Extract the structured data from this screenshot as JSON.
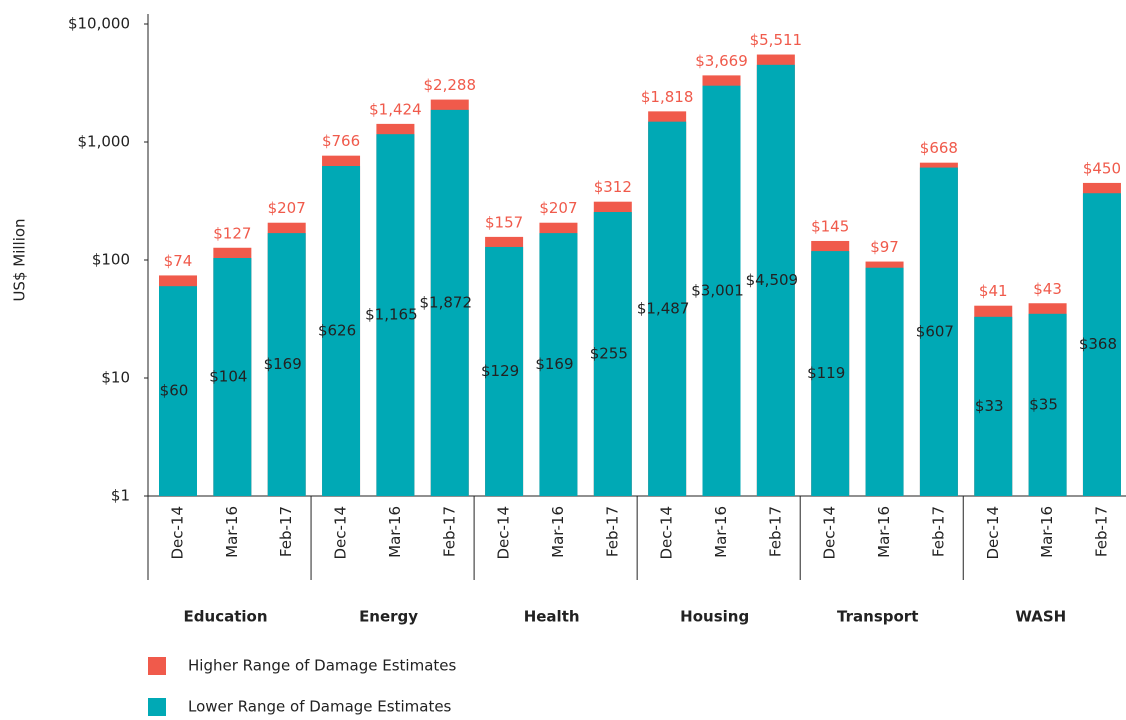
{
  "chart_data": {
    "type": "bar",
    "log_scale": true,
    "ylabel": "US$ Million",
    "ylim": [
      1,
      10000
    ],
    "yticks": [
      {
        "value": 1,
        "label": "$1"
      },
      {
        "value": 10,
        "label": "$10"
      },
      {
        "value": 100,
        "label": "$100"
      },
      {
        "value": 1000,
        "label": "$1,000"
      },
      {
        "value": 10000,
        "label": "$10,000"
      }
    ],
    "groups": [
      "Education",
      "Energy",
      "Health",
      "Housing",
      "Transport",
      "WASH"
    ],
    "categories": [
      "Dec-14",
      "Mar-16",
      "Feb-17",
      "Dec-14",
      "Mar-16",
      "Feb-17",
      "Dec-14",
      "Mar-16",
      "Feb-17",
      "Dec-14",
      "Mar-16",
      "Feb-17",
      "Dec-14",
      "Mar-16",
      "Feb-17",
      "Dec-14",
      "Mar-16",
      "Feb-17"
    ],
    "series": [
      {
        "name": "Higher Range of Damage Estimates",
        "color": "#f05a4b",
        "values": [
          74,
          127,
          207,
          766,
          1424,
          2288,
          157,
          207,
          312,
          1818,
          3669,
          5511,
          145,
          97,
          668,
          41,
          43,
          450
        ],
        "value_labels": [
          "$74",
          "$127",
          "$207",
          "$766",
          "$1,424",
          "$2,288",
          "$157",
          "$207",
          "$312",
          "$1,818",
          "$3,669",
          "$5,511",
          "$145",
          "$97",
          "$668",
          "$41",
          "$43",
          "$450"
        ]
      },
      {
        "name": "Lower Range of Damage Estimates",
        "color": "#00a9b5",
        "values": [
          60,
          104,
          169,
          626,
          1165,
          1872,
          129,
          169,
          255,
          1487,
          3001,
          4509,
          119,
          86,
          607,
          33,
          35,
          368
        ],
        "value_labels": [
          "$60",
          "$104",
          "$169",
          "$626",
          "$1,165",
          "$1,872",
          "$129",
          "$169",
          "$255",
          "$1,487",
          "$3,001",
          "$4,509",
          "$119",
          null,
          "$607",
          "$33",
          "$35",
          "$368"
        ]
      }
    ]
  }
}
